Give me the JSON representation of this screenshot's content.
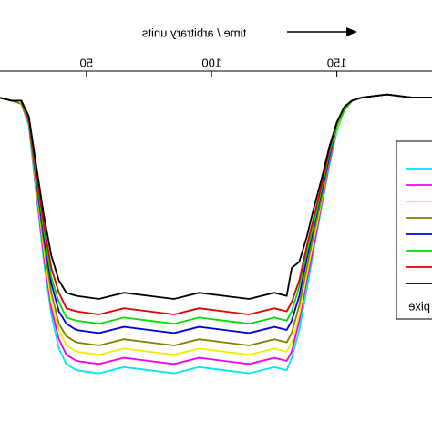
{
  "chart_data": {
    "type": "line",
    "title": "time / arbitrary units",
    "mirrored": true,
    "x": [
      15,
      20,
      24,
      27,
      30,
      33,
      36,
      39,
      42,
      46,
      55,
      65,
      75,
      85,
      95,
      105,
      115,
      125,
      130,
      132,
      135,
      138,
      141,
      144,
      147,
      150,
      153,
      156,
      160,
      170,
      180,
      188
    ],
    "xlim": [
      15.5,
      188
    ],
    "xticks": [
      50,
      100,
      150
    ],
    "ylim": [
      0,
      1
    ],
    "legend_title": "pixe",
    "series": [
      {
        "color": "#00e5ee",
        "values": [
          0.95,
          0.94,
          0.93,
          0.86,
          0.64,
          0.42,
          0.25,
          0.14,
          0.09,
          0.07,
          0.06,
          0.08,
          0.07,
          0.06,
          0.08,
          0.07,
          0.06,
          0.08,
          0.07,
          0.11,
          0.2,
          0.33,
          0.47,
          0.6,
          0.73,
          0.84,
          0.91,
          0.94,
          0.95,
          0.96,
          0.95,
          0.95
        ]
      },
      {
        "color": "#ee00ee",
        "values": [
          0.95,
          0.94,
          0.93,
          0.87,
          0.65,
          0.44,
          0.27,
          0.17,
          0.12,
          0.1,
          0.09,
          0.11,
          0.1,
          0.09,
          0.11,
          0.1,
          0.09,
          0.11,
          0.1,
          0.13,
          0.23,
          0.36,
          0.48,
          0.61,
          0.74,
          0.85,
          0.91,
          0.94,
          0.95,
          0.96,
          0.95,
          0.95
        ]
      },
      {
        "color": "#eeee00",
        "values": [
          0.95,
          0.94,
          0.93,
          0.87,
          0.66,
          0.46,
          0.29,
          0.2,
          0.15,
          0.13,
          0.12,
          0.14,
          0.13,
          0.12,
          0.14,
          0.13,
          0.12,
          0.14,
          0.13,
          0.16,
          0.25,
          0.38,
          0.5,
          0.62,
          0.75,
          0.85,
          0.91,
          0.94,
          0.95,
          0.96,
          0.95,
          0.95
        ]
      },
      {
        "color": "#808000",
        "values": [
          0.95,
          0.94,
          0.93,
          0.87,
          0.67,
          0.48,
          0.32,
          0.22,
          0.18,
          0.16,
          0.15,
          0.17,
          0.16,
          0.15,
          0.17,
          0.16,
          0.15,
          0.17,
          0.16,
          0.19,
          0.28,
          0.4,
          0.52,
          0.63,
          0.75,
          0.86,
          0.91,
          0.94,
          0.95,
          0.96,
          0.95,
          0.95
        ]
      },
      {
        "color": "#0000dd",
        "values": [
          0.95,
          0.94,
          0.94,
          0.88,
          0.69,
          0.5,
          0.35,
          0.26,
          0.22,
          0.2,
          0.19,
          0.21,
          0.2,
          0.19,
          0.21,
          0.2,
          0.19,
          0.21,
          0.2,
          0.23,
          0.31,
          0.43,
          0.54,
          0.65,
          0.76,
          0.86,
          0.91,
          0.94,
          0.95,
          0.96,
          0.95,
          0.95
        ]
      },
      {
        "color": "#00dd00",
        "values": [
          0.95,
          0.94,
          0.94,
          0.88,
          0.7,
          0.52,
          0.37,
          0.29,
          0.24,
          0.23,
          0.22,
          0.24,
          0.23,
          0.22,
          0.24,
          0.23,
          0.22,
          0.24,
          0.23,
          0.26,
          0.34,
          0.45,
          0.55,
          0.66,
          0.77,
          0.86,
          0.91,
          0.94,
          0.95,
          0.96,
          0.95,
          0.95
        ]
      },
      {
        "color": "#dd0000",
        "values": [
          0.95,
          0.94,
          0.94,
          0.88,
          0.71,
          0.54,
          0.4,
          0.32,
          0.27,
          0.26,
          0.25,
          0.27,
          0.26,
          0.25,
          0.27,
          0.26,
          0.25,
          0.27,
          0.26,
          0.29,
          0.36,
          0.47,
          0.57,
          0.67,
          0.78,
          0.87,
          0.92,
          0.94,
          0.95,
          0.96,
          0.95,
          0.95
        ]
      },
      {
        "color": "#000000",
        "values": [
          0.95,
          0.94,
          0.94,
          0.89,
          0.73,
          0.57,
          0.44,
          0.36,
          0.32,
          0.31,
          0.3,
          0.32,
          0.31,
          0.3,
          0.32,
          0.31,
          0.3,
          0.32,
          0.31,
          0.4,
          0.42,
          0.5,
          0.6,
          0.69,
          0.79,
          0.87,
          0.92,
          0.94,
          0.95,
          0.96,
          0.95,
          0.95
        ]
      }
    ]
  }
}
